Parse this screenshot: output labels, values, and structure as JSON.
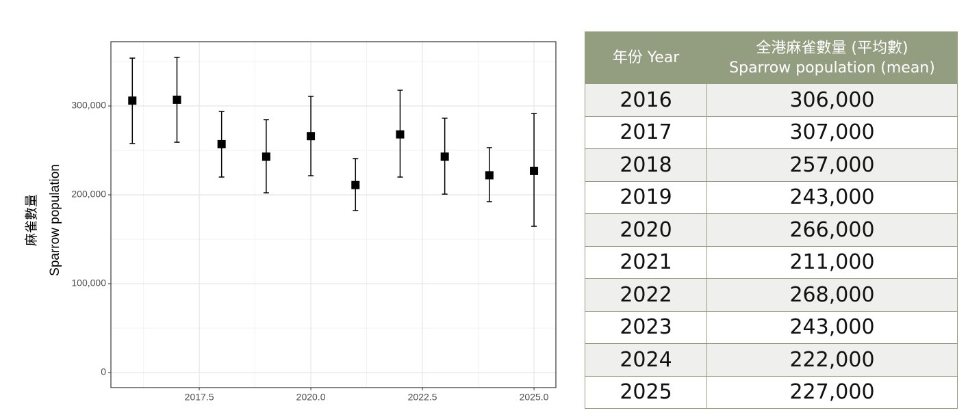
{
  "chart_data": {
    "type": "errorbar",
    "y_label": [
      "麻雀數量",
      "Sparrow population"
    ],
    "x": [
      2016,
      2017,
      2018,
      2019,
      2020,
      2021,
      2022,
      2023,
      2024,
      2025
    ],
    "values": [
      306000,
      307000,
      257000,
      243000,
      266000,
      211000,
      268000,
      243000,
      222000,
      227000
    ],
    "ci_low": [
      257700,
      259200,
      220000,
      202300,
      221500,
      182300,
      220000,
      200800,
      192300,
      164600
    ],
    "ci_high": [
      353800,
      354600,
      293800,
      284600,
      310800,
      240800,
      317700,
      286200,
      253100,
      291500
    ],
    "color": "#000000",
    "xlim": [
      2015.52,
      2025.49
    ],
    "xticks": [
      2017.5,
      {
        "value": 2020,
        "label": "2020.0"
      },
      2022.5,
      {
        "value": 2025,
        "label": "2025.0"
      }
    ],
    "minor_xticks": [
      2016.25,
      2018.75,
      2021.25,
      2023.75
    ],
    "ylim": [
      -16900,
      372300
    ],
    "yticks": [
      0,
      {
        "value": 100000,
        "label": "100,000"
      },
      {
        "value": 200000,
        "label": "200,000"
      },
      {
        "value": 300000,
        "label": "300,000"
      }
    ],
    "minor_yticks": [
      50000,
      150000,
      250000,
      350000
    ],
    "grid": true
  },
  "table": {
    "header": [
      [
        "年份 Year"
      ],
      [
        "全港麻雀數量 (平均數)",
        "Sparrow population (mean)"
      ]
    ],
    "rows": [
      [
        "2016",
        "306,000"
      ],
      [
        "2017",
        "307,000"
      ],
      [
        "2018",
        "257,000"
      ],
      [
        "2019",
        "243,000"
      ],
      [
        "2020",
        "266,000"
      ],
      [
        "2021",
        "211,000"
      ],
      [
        "2022",
        "268,000"
      ],
      [
        "2023",
        "243,000"
      ],
      [
        "2024",
        "222,000"
      ],
      [
        "2025",
        "227,000"
      ]
    ]
  }
}
